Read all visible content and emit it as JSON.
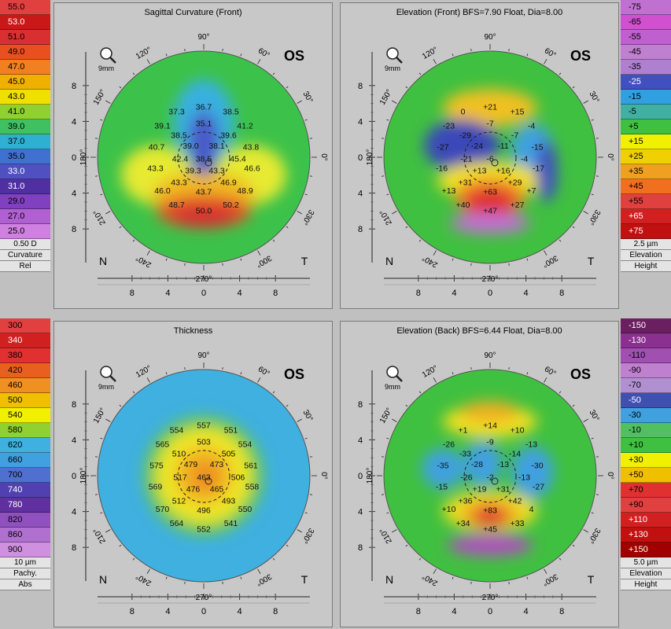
{
  "scales": {
    "curvature": {
      "values": [
        "55.0",
        "53.0",
        "51.0",
        "49.0",
        "47.0",
        "45.0",
        "43.0",
        "41.0",
        "39.0",
        "37.0",
        "35.0",
        "33.0",
        "31.0",
        "29.0",
        "27.0",
        "25.0"
      ],
      "colors": [
        "#e04040",
        "#c81818",
        "#d83030",
        "#e85020",
        "#f08020",
        "#f0b000",
        "#f0e000",
        "#90d030",
        "#40c060",
        "#30b0d0",
        "#4070d0",
        "#5050c0",
        "#5030a0",
        "#8040c0",
        "#b060d0",
        "#d080e0"
      ],
      "step": "0.50 D",
      "kind": "Curvature",
      "mode": "Rel"
    },
    "elevation_front": {
      "values": [
        "-75",
        "-65",
        "-55",
        "-45",
        "-35",
        "-25",
        "-15",
        "-5",
        "+5",
        "+15",
        "+25",
        "+35",
        "+45",
        "+55",
        "+65",
        "+75"
      ],
      "colors": [
        "#c070d0",
        "#d050d0",
        "#c060d0",
        "#c080d0",
        "#b080d0",
        "#4050c0",
        "#30a0e0",
        "#40b0a0",
        "#40c040",
        "#f0f000",
        "#f0d000",
        "#f0a020",
        "#f07020",
        "#e04040",
        "#d02020",
        "#c01010"
      ],
      "step": "2.5 µm",
      "kind": "Elevation",
      "mode": "Height"
    },
    "pachy": {
      "values": [
        "300",
        "340",
        "380",
        "420",
        "460",
        "500",
        "540",
        "580",
        "620",
        "660",
        "700",
        "740",
        "780",
        "820",
        "860",
        "900"
      ],
      "colors": [
        "#e04040",
        "#d02020",
        "#e03030",
        "#e86020",
        "#f09020",
        "#f0c000",
        "#f0f000",
        "#90d030",
        "#40b0e0",
        "#40a0e0",
        "#5070d0",
        "#5040b0",
        "#6030a0",
        "#9050c0",
        "#b070d0",
        "#d090e0"
      ],
      "step": "10 µm",
      "kind": "Pachy.",
      "mode": "Abs"
    },
    "elevation_back": {
      "values": [
        "-150",
        "-130",
        "-110",
        "-90",
        "-70",
        "-50",
        "-30",
        "-10",
        "+10",
        "+30",
        "+50",
        "+70",
        "+90",
        "+110",
        "+130",
        "+150"
      ],
      "colors": [
        "#6a2060",
        "#8a3090",
        "#a050b0",
        "#c080d0",
        "#b090d0",
        "#4050b0",
        "#40a0e0",
        "#50c060",
        "#40c040",
        "#f0f000",
        "#f0c000",
        "#e03030",
        "#e04040",
        "#d02020",
        "#c01010",
        "#a00000"
      ],
      "step": "5.0 µm",
      "kind": "Elevation",
      "mode": "Height"
    }
  },
  "panels": {
    "tl": {
      "title": "Sagittal Curvature (Front)",
      "eye": "OS",
      "zoom": "9mm",
      "labels": [
        {
          "t": "36.7",
          "x": 0,
          "y": -4.3
        },
        {
          "t": "37.3",
          "x": -2.3,
          "y": -3.9
        },
        {
          "t": "38.5",
          "x": 2.3,
          "y": -3.9
        },
        {
          "t": "35.1",
          "x": 0,
          "y": -2.9
        },
        {
          "t": "39.1",
          "x": -3.5,
          "y": -2.7
        },
        {
          "t": "41.2",
          "x": 3.5,
          "y": -2.7
        },
        {
          "t": "38.5",
          "x": -2.1,
          "y": -1.9
        },
        {
          "t": "39.6",
          "x": 2.1,
          "y": -1.9
        },
        {
          "t": "40.7",
          "x": -4.0,
          "y": -0.9
        },
        {
          "t": "39.0",
          "x": -1.1,
          "y": -1.0
        },
        {
          "t": "38.1",
          "x": 1.1,
          "y": -1.0
        },
        {
          "t": "43.8",
          "x": 4.0,
          "y": -0.9
        },
        {
          "t": "42.4",
          "x": -2.0,
          "y": 0.1
        },
        {
          "t": "38.5",
          "x": 0,
          "y": 0.1
        },
        {
          "t": "45.4",
          "x": 2.9,
          "y": 0.1
        },
        {
          "t": "43.3",
          "x": -4.1,
          "y": 0.9
        },
        {
          "t": "39.3",
          "x": -0.9,
          "y": 1.1
        },
        {
          "t": "43.3",
          "x": 1.1,
          "y": 1.1
        },
        {
          "t": "46.6",
          "x": 4.1,
          "y": 0.9
        },
        {
          "t": "43.3",
          "x": -2.1,
          "y": 2.1
        },
        {
          "t": "46.9",
          "x": 2.1,
          "y": 2.1
        },
        {
          "t": "46.0",
          "x": -3.5,
          "y": 2.8
        },
        {
          "t": "43.7",
          "x": 0,
          "y": 2.9
        },
        {
          "t": "48.9",
          "x": 3.5,
          "y": 2.8
        },
        {
          "t": "48.7",
          "x": -2.3,
          "y": 4.0
        },
        {
          "t": "50.2",
          "x": 2.3,
          "y": 4.0
        },
        {
          "t": "50.0",
          "x": 0,
          "y": 4.5
        }
      ]
    },
    "tr": {
      "title": "Elevation (Front)  BFS=7.90 Float, Dia=8.00",
      "eye": "OS",
      "zoom": "9mm",
      "labels": [
        {
          "t": "+21",
          "x": 0,
          "y": -4.3
        },
        {
          "t": "0",
          "x": -2.3,
          "y": -3.9
        },
        {
          "t": "+15",
          "x": 2.3,
          "y": -3.9
        },
        {
          "t": "-7",
          "x": 0,
          "y": -2.9
        },
        {
          "t": "-23",
          "x": -3.5,
          "y": -2.7
        },
        {
          "t": "-4",
          "x": 3.5,
          "y": -2.7
        },
        {
          "t": "-29",
          "x": -2.1,
          "y": -1.9
        },
        {
          "t": "-7",
          "x": 2.1,
          "y": -1.9
        },
        {
          "t": "-27",
          "x": -4.0,
          "y": -0.9
        },
        {
          "t": "-24",
          "x": -1.1,
          "y": -1.0
        },
        {
          "t": "-11",
          "x": 1.1,
          "y": -1.0
        },
        {
          "t": "-15",
          "x": 4.0,
          "y": -0.9
        },
        {
          "t": "-21",
          "x": -2.0,
          "y": 0.1
        },
        {
          "t": "-6",
          "x": 0,
          "y": 0.1
        },
        {
          "t": "-4",
          "x": 2.9,
          "y": 0.1
        },
        {
          "t": "-16",
          "x": -4.1,
          "y": 0.9
        },
        {
          "t": "+13",
          "x": -0.9,
          "y": 1.1
        },
        {
          "t": "+16",
          "x": 1.1,
          "y": 1.1
        },
        {
          "t": "-17",
          "x": 4.1,
          "y": 0.9
        },
        {
          "t": "+31",
          "x": -2.1,
          "y": 2.1
        },
        {
          "t": "+29",
          "x": 2.1,
          "y": 2.1
        },
        {
          "t": "+13",
          "x": -3.5,
          "y": 2.8
        },
        {
          "t": "+63",
          "x": 0,
          "y": 2.9
        },
        {
          "t": "+7",
          "x": 3.5,
          "y": 2.8
        },
        {
          "t": "+40",
          "x": -2.3,
          "y": 4.0
        },
        {
          "t": "+27",
          "x": 2.3,
          "y": 4.0
        },
        {
          "t": "+47",
          "x": 0,
          "y": 4.5
        }
      ]
    },
    "bl": {
      "title": "Thickness",
      "eye": "OS",
      "zoom": "9mm",
      "labels": [
        {
          "t": "557",
          "x": 0,
          "y": -4.3
        },
        {
          "t": "554",
          "x": -2.3,
          "y": -3.9
        },
        {
          "t": "551",
          "x": 2.3,
          "y": -3.9
        },
        {
          "t": "503",
          "x": 0,
          "y": -2.9
        },
        {
          "t": "565",
          "x": -3.5,
          "y": -2.7
        },
        {
          "t": "554",
          "x": 3.5,
          "y": -2.7
        },
        {
          "t": "510",
          "x": -2.1,
          "y": -1.9
        },
        {
          "t": "505",
          "x": 2.1,
          "y": -1.9
        },
        {
          "t": "575",
          "x": -4.0,
          "y": -0.9
        },
        {
          "t": "479",
          "x": -1.1,
          "y": -1.0
        },
        {
          "t": "473",
          "x": 1.1,
          "y": -1.0
        },
        {
          "t": "561",
          "x": 4.0,
          "y": -0.9
        },
        {
          "t": "517",
          "x": -2.0,
          "y": 0.1
        },
        {
          "t": "463",
          "x": 0,
          "y": 0.1
        },
        {
          "t": "506",
          "x": 2.9,
          "y": 0.1
        },
        {
          "t": "569",
          "x": -4.1,
          "y": 0.9
        },
        {
          "t": "476",
          "x": -0.9,
          "y": 1.1
        },
        {
          "t": "465",
          "x": 1.1,
          "y": 1.1
        },
        {
          "t": "558",
          "x": 4.1,
          "y": 0.9
        },
        {
          "t": "512",
          "x": -2.1,
          "y": 2.1
        },
        {
          "t": "493",
          "x": 2.1,
          "y": 2.1
        },
        {
          "t": "570",
          "x": -3.5,
          "y": 2.8
        },
        {
          "t": "496",
          "x": 0,
          "y": 2.9
        },
        {
          "t": "550",
          "x": 3.5,
          "y": 2.8
        },
        {
          "t": "564",
          "x": -2.3,
          "y": 4.0
        },
        {
          "t": "541",
          "x": 2.3,
          "y": 4.0
        },
        {
          "t": "552",
          "x": 0,
          "y": 4.5
        }
      ]
    },
    "br": {
      "title": "Elevation (Back)  BFS=6.44 Float, Dia=8.00",
      "eye": "OS",
      "zoom": "9mm",
      "labels": [
        {
          "t": "+14",
          "x": 0,
          "y": -4.3
        },
        {
          "t": "+1",
          "x": -2.3,
          "y": -3.9
        },
        {
          "t": "+10",
          "x": 2.3,
          "y": -3.9
        },
        {
          "t": "-9",
          "x": 0,
          "y": -2.9
        },
        {
          "t": "-26",
          "x": -3.5,
          "y": -2.7
        },
        {
          "t": "-13",
          "x": 3.5,
          "y": -2.7
        },
        {
          "t": "-33",
          "x": -2.1,
          "y": -1.9
        },
        {
          "t": "-14",
          "x": 2.1,
          "y": -1.9
        },
        {
          "t": "-35",
          "x": -4.0,
          "y": -0.9
        },
        {
          "t": "-28",
          "x": -1.1,
          "y": -1.0
        },
        {
          "t": "-13",
          "x": 1.1,
          "y": -1.0
        },
        {
          "t": "-30",
          "x": 4.0,
          "y": -0.9
        },
        {
          "t": "-26",
          "x": -2.0,
          "y": 0.1
        },
        {
          "t": "-2",
          "x": 0,
          "y": 0.1
        },
        {
          "t": "-13",
          "x": 2.9,
          "y": 0.1
        },
        {
          "t": "-15",
          "x": -4.1,
          "y": 0.9
        },
        {
          "t": "+19",
          "x": -0.9,
          "y": 1.1
        },
        {
          "t": "+31",
          "x": 1.1,
          "y": 1.1
        },
        {
          "t": "-27",
          "x": 4.1,
          "y": 0.9
        },
        {
          "t": "+36",
          "x": -2.1,
          "y": 2.1
        },
        {
          "t": "+42",
          "x": 2.1,
          "y": 2.1
        },
        {
          "t": "+10",
          "x": -3.5,
          "y": 2.8
        },
        {
          "t": "+83",
          "x": 0,
          "y": 2.9
        },
        {
          "t": "4",
          "x": 3.5,
          "y": 2.8
        },
        {
          "t": "+34",
          "x": -2.3,
          "y": 4.0
        },
        {
          "t": "+33",
          "x": 2.3,
          "y": 4.0
        },
        {
          "t": "+45",
          "x": 0,
          "y": 4.5
        }
      ]
    }
  },
  "axis": {
    "ticks_y": [
      "8",
      "4",
      "0",
      "4",
      "8"
    ],
    "ticks_x": [
      "8",
      "4",
      "0",
      "4",
      "8"
    ],
    "angles": [
      "90°",
      "60°",
      "30°",
      "0°",
      "330°",
      "300°",
      "270°",
      "240°",
      "210°",
      "180°",
      "150°",
      "120°"
    ],
    "nasal": "N",
    "temporal": "T"
  }
}
